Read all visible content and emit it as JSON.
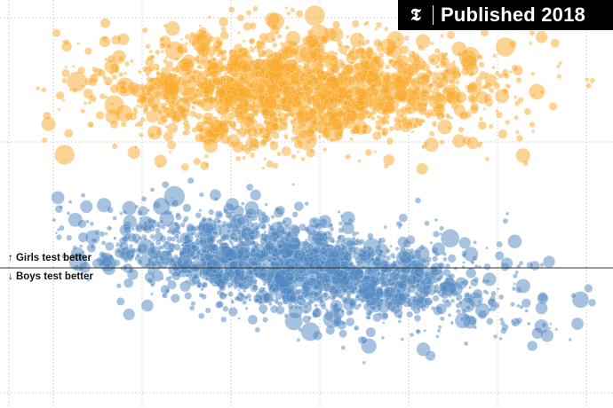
{
  "badge": {
    "logo_glyph": "𝕿",
    "logo_icon": "nyt-logo-icon",
    "text": "Published 2018"
  },
  "annotations": {
    "above_arrow": "↑",
    "above_text": "Girls test better",
    "below_arrow": "↓",
    "below_text": "Boys test better"
  },
  "colors": {
    "girls_series": "#f9a825",
    "boys_series": "#4e86bf",
    "zero_line": "#333333",
    "grid": "#cccccc"
  },
  "chart_data": [
    {
      "type": "scatter",
      "title": "",
      "xlabel": "",
      "ylabel": "",
      "x_ticks_labeled": false,
      "y_ticks_labeled": false,
      "grid": true,
      "grid_style": "dotted",
      "encoding": "bubble size varies by point",
      "series": [
        {
          "name": "",
          "color": "#f9a825",
          "description_visible": "orange cluster, upper band",
          "points_visible": "approximately 2000",
          "x_extent_fraction": [
            0.05,
            0.98
          ],
          "y_extent_fraction": [
            0.02,
            0.4
          ]
        },
        {
          "name": "",
          "color": "#4e86bf",
          "description_visible": "blue cluster, lower band sloping downward to the right",
          "points_visible": "approximately 2000",
          "x_extent_fraction": [
            0.12,
            0.97
          ],
          "y_extent_fraction": [
            0.45,
            0.96
          ]
        }
      ],
      "reference_line": {
        "value": 0,
        "label_above": "Girls test better",
        "label_below": "Boys test better"
      }
    }
  ]
}
